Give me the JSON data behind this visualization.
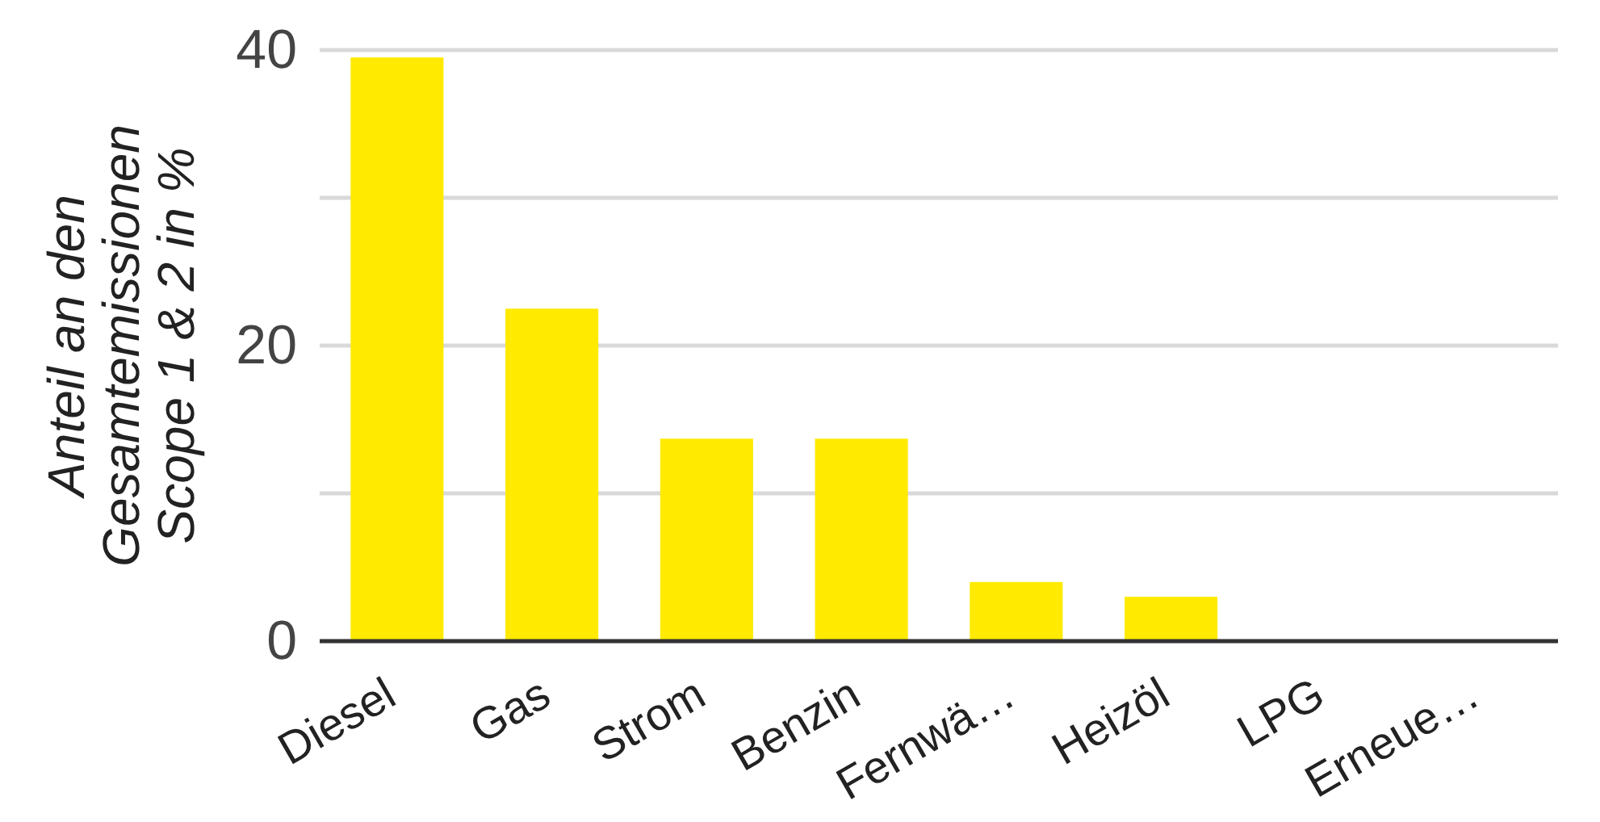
{
  "chart_data": {
    "type": "bar",
    "ylabel": "Anteil an den Gesamtemissionen Scope 1 & 2 in %",
    "categories": [
      "Diesel",
      "Gas",
      "Strom",
      "Benzin",
      "Fernwä…",
      "Heizöl",
      "LPG",
      "Erneue…"
    ],
    "values": [
      39.5,
      22.5,
      13.7,
      13.7,
      4.0,
      3.0,
      0,
      0
    ],
    "color": "#ffea00",
    "ylim": [
      0,
      40
    ],
    "yticks": [
      0,
      {
        "value": 10,
        "label": null
      },
      20,
      {
        "value": 30,
        "label": null
      },
      40
    ],
    "grid": "y"
  }
}
